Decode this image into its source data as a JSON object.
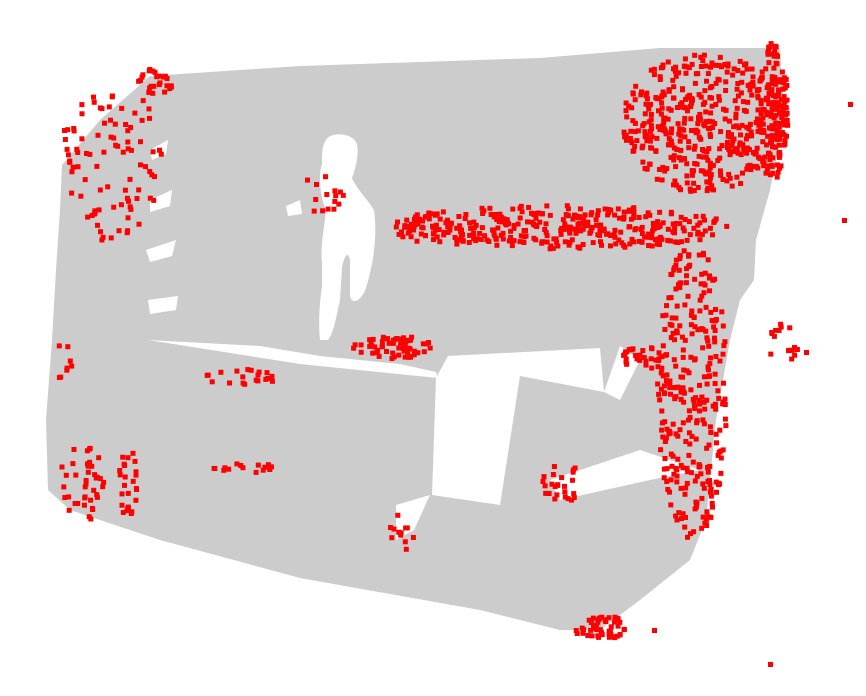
{
  "scene": {
    "background_color": "#ffffff",
    "surface_color": "#cccccc",
    "highlight_color": "#ff0000"
  }
}
